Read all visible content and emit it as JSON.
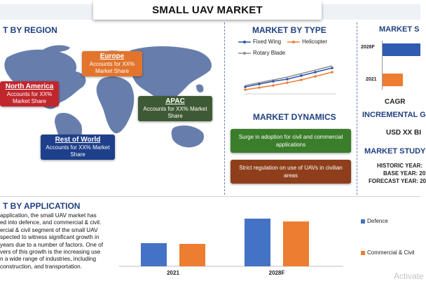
{
  "header": {
    "title": "SMALL UAV MARKET"
  },
  "region": {
    "title": "T BY REGION",
    "regions": [
      {
        "name": "North America",
        "desc": "Accounts for XX% Market Share",
        "color": "#c0272d"
      },
      {
        "name": "Europe",
        "desc": "Accounts for XX% Market Share",
        "color": "#e2742c"
      },
      {
        "name": "APAC",
        "desc": "Accounts for XX% Market Share",
        "color": "#3e5a34"
      },
      {
        "name": "Rest of World",
        "desc": "Accounts for XX% Market Share",
        "color": "#1e3f8a"
      }
    ]
  },
  "market_type": {
    "title": "MARKET BY TYPE",
    "legend": [
      {
        "name": "Fixed Wing",
        "color": "#2e55a8"
      },
      {
        "name": "Helicopter",
        "color": "#e8803a"
      },
      {
        "name": "Rotary Blade",
        "color": "#8f8f8f"
      }
    ]
  },
  "dynamics": {
    "title": "MARKET DYNAMICS",
    "items": [
      {
        "text": "Surge in adoption for civil and commercial applications",
        "color": "#3a7d2a"
      },
      {
        "text": "Strict regulation on use of UAVs in civilian areas",
        "color": "#8e3e1a"
      }
    ]
  },
  "right_panel": {
    "market_share_title": "MARKET S",
    "bars": [
      {
        "label": "2028F",
        "color": "#2f5bb0"
      },
      {
        "label": "2021",
        "color": "#ed7d31"
      }
    ],
    "cagr": "CAGR",
    "incremental": "INCREMENTAL G",
    "usd": "USD XX BI",
    "study_title": "MARKET STUDY",
    "historic": "HISTORIC YEAR: ",
    "base": "BASE YEAR: 20",
    "forecast": "FORECAST YEAR: 20"
  },
  "application": {
    "title": "T BY APPLICATION",
    "text": "application, the small UAV market has ed into defence, and commercial & civil. ercial & civil segment of the small UAV spected to witness significant growth in years due to a number of factors. One of vers of this growth is the increasing use n a wide range of industries, including construction, and transportation.",
    "lines": [
      "application, the small UAV market has",
      "ed into defence, and commercial & civil.",
      "ercial & civil segment of the small UAV",
      "spected to witness significant growth in",
      "years due to a number of factors. One of",
      "vers of this growth is the increasing use",
      "n a wide range of industries, including",
      "construction, and transportation."
    ]
  },
  "chart_data": {
    "type": "bar",
    "categories": [
      "2021",
      "2028F"
    ],
    "series": [
      {
        "name": "Defence",
        "values": [
          33,
          68
        ],
        "color": "#4472c4"
      },
      {
        "name": "Commercial & Civil",
        "values": [
          32,
          64
        ],
        "color": "#ed7d31"
      }
    ],
    "ylim": [
      0,
      80
    ],
    "grid": false,
    "legend": "right"
  },
  "watermark": "Activate"
}
